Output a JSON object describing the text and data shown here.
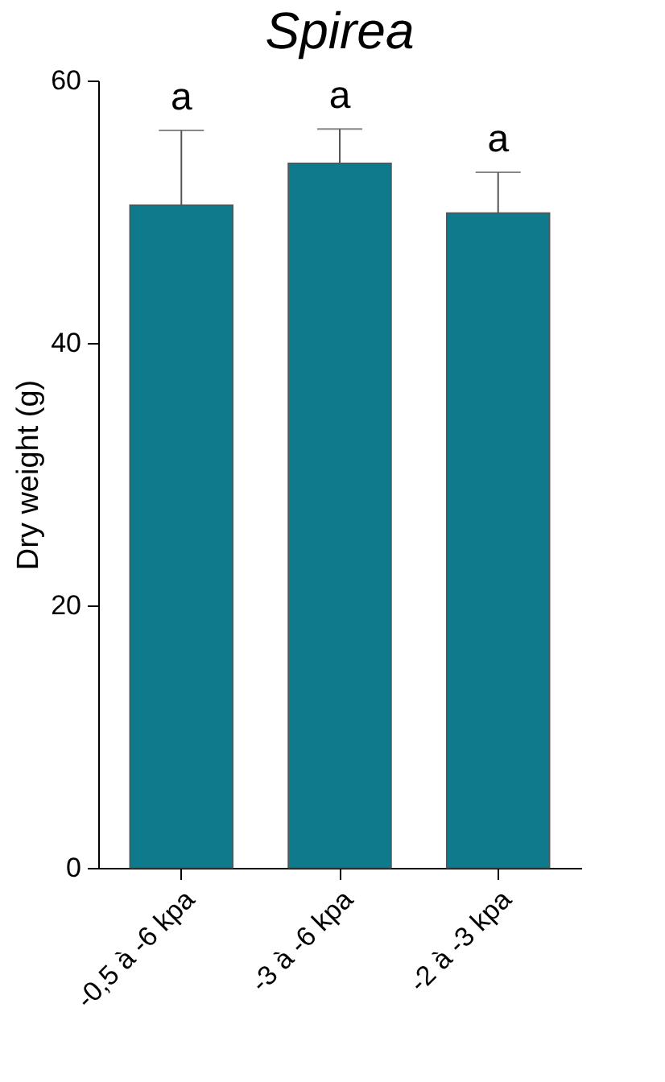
{
  "chart_data": {
    "type": "bar",
    "title": "Spirea",
    "ylabel": "Dry weight (g)",
    "categories": [
      "-0,5 à -6 kpa",
      "-3 à -6 kpa",
      "-2 à -3 kpa"
    ],
    "values": [
      50.5,
      53.7,
      49.9
    ],
    "color": "#0e7a8c",
    "errors": [
      [
        50.5,
        56.2
      ],
      [
        53.7,
        56.3
      ],
      [
        49.9,
        53.0
      ]
    ],
    "ylim": [
      0,
      60
    ],
    "yticks": [
      0,
      20,
      40,
      60
    ],
    "grid": false,
    "annotations": [
      "a",
      "a",
      "a"
    ]
  }
}
